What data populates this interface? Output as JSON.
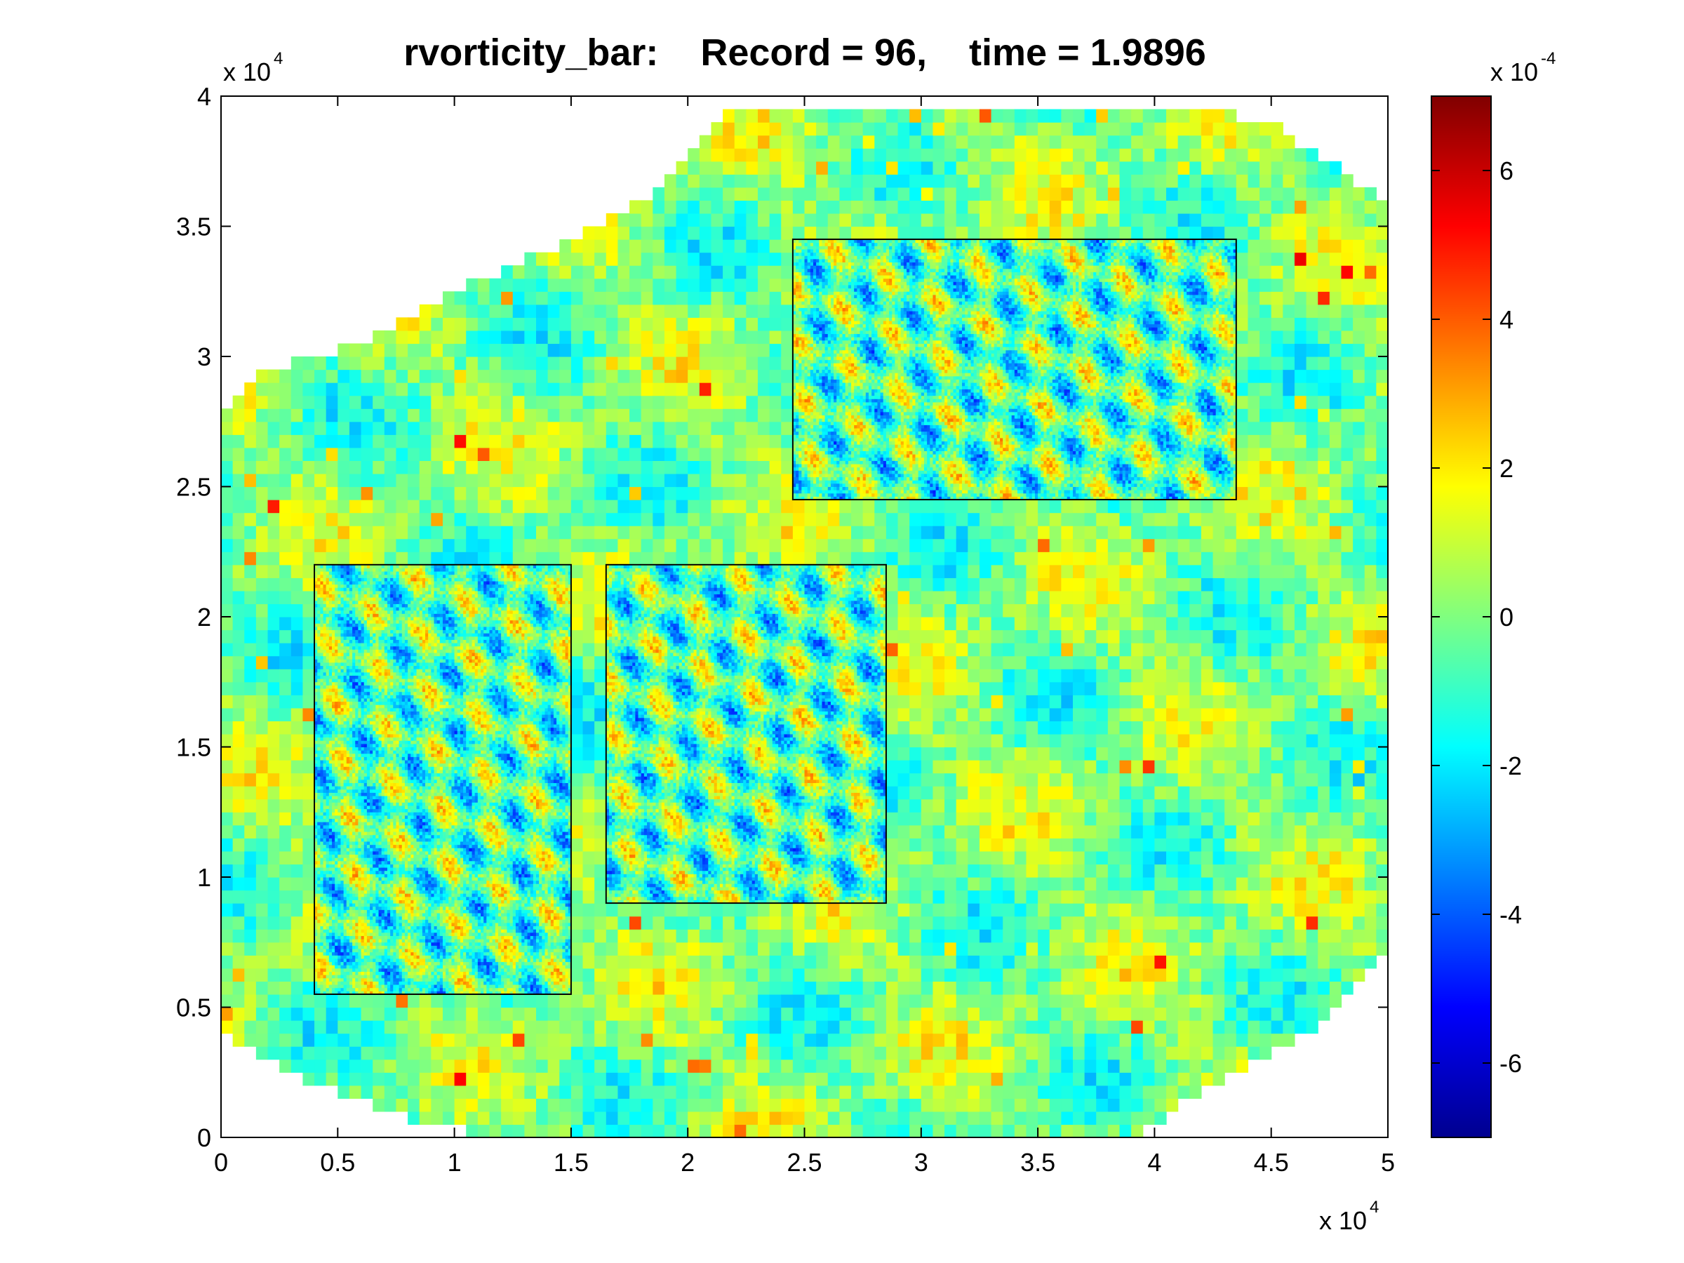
{
  "chart_data": {
    "type": "heatmap",
    "title": "rvorticity_bar:    Record = 96,    time = 1.9896",
    "xlabel": "",
    "ylabel": "",
    "x_multiplier_base": "x 10",
    "x_multiplier_exp": "4",
    "y_multiplier_base": "x 10",
    "y_multiplier_exp": "4",
    "xlim": [
      0,
      5
    ],
    "ylim": [
      0,
      4
    ],
    "x_ticks": [
      "0",
      "0.5",
      "1",
      "1.5",
      "2",
      "2.5",
      "3",
      "3.5",
      "4",
      "4.5",
      "5"
    ],
    "y_ticks": [
      "0",
      "0.5",
      "1",
      "1.5",
      "2",
      "2.5",
      "3",
      "3.5",
      "4"
    ],
    "grid": false,
    "colorbar": {
      "colormap": "jet",
      "clim": [
        -7,
        7
      ],
      "multiplier_base": "x 10",
      "multiplier_exp": "-4",
      "ticks": [
        "-6",
        "-4",
        "-2",
        "0",
        "2",
        "4",
        "6"
      ],
      "tick_values": [
        -6,
        -4,
        -2,
        0,
        2,
        4,
        6
      ]
    },
    "domain_polygon": [
      [
        1.25,
        0
      ],
      [
        3.9,
        0
      ],
      [
        4.25,
        0.2
      ],
      [
        4.65,
        0.4
      ],
      [
        5,
        0.7
      ],
      [
        5,
        3.6
      ],
      [
        4.5,
        3.9
      ],
      [
        4.2,
        3.95
      ],
      [
        2.2,
        3.95
      ],
      [
        1.8,
        3.6
      ],
      [
        1.5,
        3.45
      ],
      [
        1.0,
        3.25
      ],
      [
        0.6,
        3.05
      ],
      [
        0.2,
        2.95
      ],
      [
        0,
        2.8
      ],
      [
        0,
        0.4
      ],
      [
        0.3,
        0.25
      ],
      [
        0.9,
        0.05
      ]
    ],
    "nested_regions": [
      {
        "name": "",
        "x_range": [
          0.4,
          1.5
        ],
        "y_range": [
          0.55,
          2.2
        ]
      },
      {
        "name": "",
        "x_range": [
          1.65,
          2.85
        ],
        "y_range": [
          0.9,
          2.2
        ]
      },
      {
        "name": "",
        "x_range": [
          2.45,
          4.35
        ],
        "y_range": [
          2.45,
          3.45
        ]
      }
    ]
  }
}
